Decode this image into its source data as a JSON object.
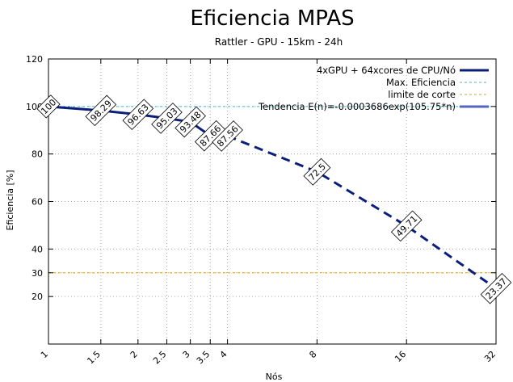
{
  "colors": {
    "series": "#0b1f7a",
    "max_line": "#49b3c8",
    "cut_line": "#e0a30c",
    "trend": "#5566c0",
    "grid": "#aaaaaa"
  },
  "chart_data": {
    "type": "line",
    "title": "Eficiencia MPAS",
    "subtitle": "Rattler - GPU - 15km - 24h",
    "xlabel": "Nós",
    "ylabel": "Eficiencia [%]",
    "xscale": "log2",
    "xlim": [
      1,
      32
    ],
    "ylim": [
      0,
      120
    ],
    "x_ticks": [
      1,
      1.5,
      2,
      2.5,
      3,
      3.5,
      4,
      8,
      16,
      32
    ],
    "x_tick_labels": [
      "1",
      "1.5",
      "2",
      "2.5",
      "3",
      "3.5",
      "4",
      "8",
      "16",
      "32"
    ],
    "y_ticks": [
      20,
      30,
      40,
      60,
      80,
      100,
      120
    ],
    "y_tick_labels": [
      "20",
      "30",
      "40",
      "60",
      "80",
      "100",
      "120"
    ],
    "legend_position": "top-right",
    "series": [
      {
        "name": "4xGPU + 64xcores de CPU/Nó",
        "x": [
          1,
          1.5,
          2,
          2.5,
          3,
          3.5,
          4,
          8,
          16,
          32
        ],
        "values": [
          100,
          98.29,
          96.63,
          95.03,
          93.48,
          87.66,
          87.56,
          72.5,
          49.71,
          23.37
        ],
        "labels": [
          "100",
          "98.29",
          "96.63",
          "95.03",
          "93.48",
          "87.66",
          "87.56",
          "72.5",
          "49.71",
          "23.37"
        ]
      }
    ],
    "reference_lines": [
      {
        "name": "Max. Eficiencia",
        "y": 100
      },
      {
        "name": "limite de corte",
        "y": 30
      }
    ],
    "trend": {
      "name": "Tendencia E(n)=-0.0003686exp(105.75*n)"
    }
  }
}
